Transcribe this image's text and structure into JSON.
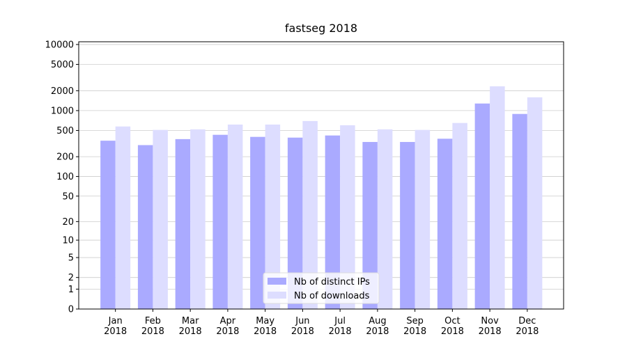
{
  "chart_data": {
    "type": "bar",
    "title": "fastseg 2018",
    "categories": [
      "Jan\n2018",
      "Feb\n2018",
      "Mar\n2018",
      "Apr\n2018",
      "May\n2018",
      "Jun\n2018",
      "Jul\n2018",
      "Aug\n2018",
      "Sep\n2018",
      "Oct\n2018",
      "Nov\n2018",
      "Dec\n2018"
    ],
    "series": [
      {
        "name": "Nb of distinct IPs",
        "color": "#aaaaff",
        "values": [
          350,
          300,
          370,
          430,
          400,
          390,
          420,
          335,
          335,
          375,
          1280,
          890
        ]
      },
      {
        "name": "Nb of downloads",
        "color": "#ddddff",
        "values": [
          575,
          510,
          520,
          615,
          615,
          695,
          600,
          520,
          510,
          650,
          2330,
          1590
        ]
      }
    ],
    "yscale": "log1p",
    "ylim": [
      0,
      11000
    ],
    "yticks": [
      0,
      1,
      2,
      5,
      10,
      20,
      50,
      100,
      200,
      500,
      1000,
      2000,
      5000,
      10000
    ],
    "grid": true,
    "legend": "lower center"
  }
}
